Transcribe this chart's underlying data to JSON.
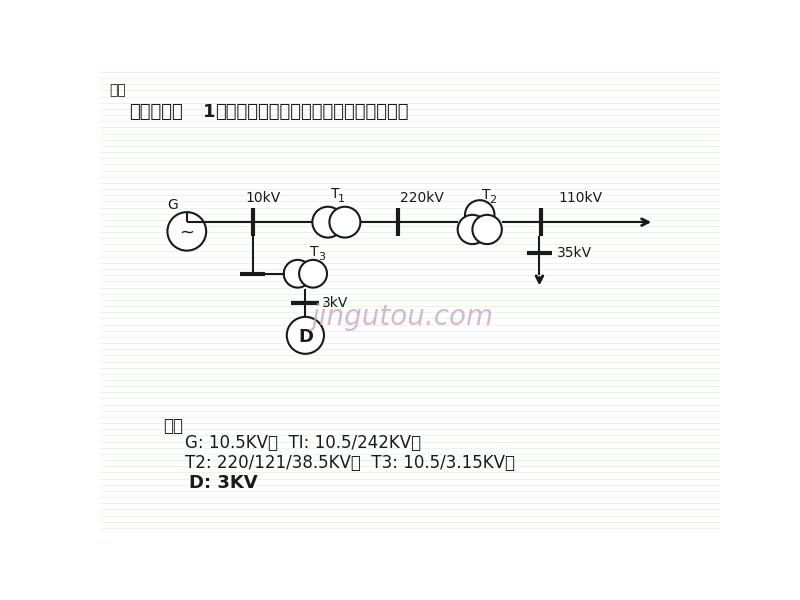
{
  "bg_color": "#ffffff",
  "line_color": "#1a1a1a",
  "title_chapter": "章一",
  "title_question_1": "一．标出图",
  "title_question_bold": "1",
  "title_question_2": "中发电机、变压器和电动机的额定电压。",
  "answer_label": "解：",
  "answer_line1": "    G: 10.5KV；  TI: 10.5/242KV；",
  "answer_line2": "    T2: 220/121/38.5KV；  T3: 10.5/3.15KV；",
  "answer_line3": "    D: 3KV",
  "watermark": "jingutou.com",
  "watermark_color": "#c8a0c8",
  "grid_line_color": "#d8eed8",
  "label_10kV": "10kV",
  "label_T1": "T",
  "label_T1_sub": "1",
  "label_220kV": "220kV",
  "label_T2": "T",
  "label_T2_sub": "2",
  "label_110kV": "110kV",
  "label_G": "G",
  "label_35kV": "35kV",
  "label_T3": "T",
  "label_T3_sub": "3",
  "label_3kV": "3kV",
  "label_D": "D"
}
